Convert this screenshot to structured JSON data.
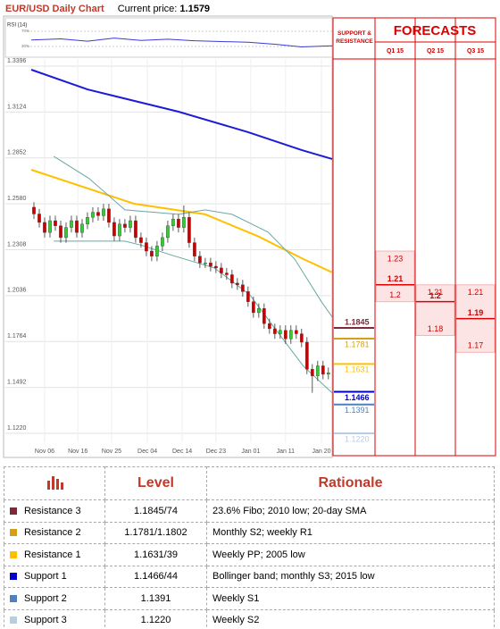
{
  "header": {
    "title": "EUR/USD Daily Chart",
    "price_label": "Current price:",
    "price": 1.1579
  },
  "chart_data": [
    {
      "type": "candlestick",
      "x": [
        0,
        1,
        2,
        3,
        4,
        5,
        6,
        7,
        8,
        9,
        10,
        11,
        12,
        13,
        14,
        15,
        16,
        17,
        18,
        19,
        20,
        21,
        22,
        23,
        24,
        25,
        26,
        27,
        28,
        29,
        30,
        31,
        32,
        33,
        34,
        35,
        36,
        37,
        38,
        39,
        40,
        41,
        42,
        43,
        44,
        45,
        46,
        47,
        48,
        49,
        50,
        51,
        52,
        53,
        54,
        55
      ],
      "open": [
        1.256,
        1.252,
        1.247,
        1.241,
        1.248,
        1.245,
        1.238,
        1.244,
        1.248,
        1.241,
        1.246,
        1.25,
        1.253,
        1.251,
        1.255,
        1.247,
        1.239,
        1.246,
        1.244,
        1.248,
        1.238,
        1.235,
        1.23,
        1.227,
        1.233,
        1.238,
        1.245,
        1.249,
        1.244,
        1.25,
        1.235,
        1.227,
        1.223,
        1.223,
        1.221,
        1.22,
        1.217,
        1.216,
        1.211,
        1.21,
        1.206,
        1.2,
        1.1935,
        1.196,
        1.187,
        1.184,
        1.181,
        1.183,
        1.178,
        1.183,
        1.181,
        1.176,
        1.16,
        1.156,
        1.162,
        1.157
      ],
      "high": [
        1.259,
        1.255,
        1.25,
        1.251,
        1.251,
        1.248,
        1.247,
        1.251,
        1.251,
        1.249,
        1.253,
        1.256,
        1.256,
        1.258,
        1.258,
        1.25,
        1.249,
        1.249,
        1.251,
        1.251,
        1.241,
        1.238,
        1.233,
        1.236,
        1.241,
        1.248,
        1.252,
        1.252,
        1.257,
        1.253,
        1.238,
        1.23,
        1.226,
        1.226,
        1.224,
        1.223,
        1.22,
        1.219,
        1.214,
        1.213,
        1.209,
        1.203,
        1.199,
        1.199,
        1.19,
        1.187,
        1.186,
        1.186,
        1.186,
        1.186,
        1.184,
        1.179,
        1.163,
        1.165,
        1.165,
        1.161
      ],
      "low": [
        1.249,
        1.244,
        1.238,
        1.238,
        1.242,
        1.235,
        1.235,
        1.241,
        1.238,
        1.238,
        1.243,
        1.247,
        1.248,
        1.248,
        1.244,
        1.236,
        1.236,
        1.241,
        1.241,
        1.235,
        1.232,
        1.227,
        1.224,
        1.224,
        1.23,
        1.235,
        1.242,
        1.241,
        1.241,
        1.232,
        1.224,
        1.22,
        1.22,
        1.218,
        1.217,
        1.214,
        1.213,
        1.208,
        1.207,
        1.203,
        1.197,
        1.1905,
        1.1905,
        1.184,
        1.181,
        1.178,
        1.178,
        1.175,
        1.175,
        1.178,
        1.173,
        1.157,
        1.146,
        1.153,
        1.154,
        1.154
      ],
      "close": [
        1.252,
        1.247,
        1.241,
        1.248,
        1.245,
        1.238,
        1.244,
        1.248,
        1.241,
        1.246,
        1.25,
        1.253,
        1.251,
        1.255,
        1.247,
        1.239,
        1.246,
        1.244,
        1.248,
        1.238,
        1.235,
        1.23,
        1.227,
        1.233,
        1.238,
        1.245,
        1.249,
        1.244,
        1.25,
        1.235,
        1.227,
        1.223,
        1.223,
        1.221,
        1.22,
        1.217,
        1.216,
        1.211,
        1.21,
        1.206,
        1.2,
        1.1935,
        1.196,
        1.187,
        1.184,
        1.181,
        1.183,
        1.178,
        1.183,
        1.181,
        1.176,
        1.16,
        1.156,
        1.162,
        1.157,
        1.1579
      ],
      "up_color": "#33cc33",
      "down_color": "#cc0000",
      "series": [
        {
          "color": "#1c1cd6",
          "x": [
            -0.5,
            10,
            27,
            40,
            50,
            55.7
          ],
          "values": [
            1.3375,
            1.3258,
            1.3126,
            1.3005,
            1.2899,
            1.2846
          ]
        },
        {
          "color": "#ffc000",
          "x": [
            -0.5,
            18.7,
            32,
            42,
            50.3,
            55.7
          ],
          "values": [
            1.2782,
            1.2581,
            1.2518,
            1.2386,
            1.2253,
            1.2174
          ]
        },
        {
          "color": "#6aa6a2",
          "x": [
            3.7,
            10.3,
            17,
            27,
            32,
            37,
            43.7,
            48.7,
            53.7,
            55.7
          ],
          "values": [
            1.2862,
            1.273,
            1.2544,
            1.2518,
            1.2544,
            1.2518,
            1.2413,
            1.2253,
            1.2,
            1.191
          ]
        },
        {
          "color": "#6aa6a2",
          "x": [
            3.7,
            10.3,
            17,
            20.3,
            25.3,
            33.7,
            40.3,
            45.3,
            50.3,
            55.7
          ],
          "values": [
            1.2359,
            1.2359,
            1.2359,
            1.2333,
            1.228,
            1.22,
            1.2042,
            1.183,
            1.1619,
            1.146
          ]
        }
      ],
      "xlim": [
        -0.5,
        55.7
      ],
      "xticks": [
        {
          "value": 2,
          "label": "Nov 06"
        },
        {
          "value": 8.2,
          "label": "Nov 16"
        },
        {
          "value": 14.5,
          "label": "Nov 25"
        },
        {
          "value": 21.2,
          "label": "Dec 04"
        },
        {
          "value": 27.7,
          "label": "Dec 14"
        },
        {
          "value": 34,
          "label": "Dec 23"
        },
        {
          "value": 40.5,
          "label": "Jan 01"
        },
        {
          "value": 47,
          "label": "Jan 11"
        },
        {
          "value": 53.7,
          "label": "Jan 20"
        }
      ],
      "ylim": [
        1.1167,
        1.3428
      ],
      "yticks": [
        1.3396,
        1.3124,
        1.2852,
        {
          "value": 1.258,
          "label": "1.2580"
        },
        1.2308,
        1.2036,
        1.1764,
        1.1492,
        {
          "value": 1.122,
          "label": "1.1220"
        }
      ],
      "grid": true,
      "levels": {
        "title": "SUPPORT & RESISTANCE",
        "values": [
          1.1845,
          1.1781,
          1.1631,
          1.1466,
          1.1391,
          1.122
        ],
        "value_labels": [
          "1.1845",
          "1.1781",
          "1.1631",
          "1.1466",
          "1.1391",
          "1.1220"
        ],
        "colors": [
          "#7b2c3a",
          "#d4a017",
          "#ffc000",
          "#0000cc",
          "#4f81bd",
          "#b8cce4"
        ]
      },
      "forecast": {
        "title": "FORECASTS",
        "columns": [
          "Q1 15",
          "Q2 15",
          "Q3 15"
        ],
        "high": [
          1.23,
          1.21,
          1.21
        ],
        "mid": [
          1.21,
          1.2,
          1.19
        ],
        "low": [
          1.2,
          1.18,
          1.17
        ]
      }
    },
    {
      "type": "line",
      "title": "RSI (14)",
      "color": "#3b3bd6",
      "x": [
        -0.5,
        5,
        10,
        15,
        20,
        25,
        30,
        35,
        40,
        45,
        50,
        55.7
      ],
      "values": [
        47,
        50,
        44,
        52,
        46,
        49,
        45,
        43,
        41,
        36,
        29,
        32
      ],
      "xlim": [
        -0.5,
        55.7
      ],
      "ylim": [
        2,
        105
      ],
      "yticks": [
        {
          "value": 70,
          "label": "70%"
        },
        {
          "value": 30,
          "label": "30%"
        }
      ]
    }
  ],
  "table": {
    "header": [
      "Level",
      "Rationale"
    ],
    "rows": [
      {
        "color": "#7b2c3a",
        "name": "Resistance 3",
        "level": "1.1845/74",
        "rationale": "23.6% Fibo; 2010 low; 20-day SMA"
      },
      {
        "color": "#d4a017",
        "name": "Resistance 2",
        "level": "1.1781/1.1802",
        "rationale": "Monthly S2; weekly R1"
      },
      {
        "color": "#ffc000",
        "name": "Resistance 1",
        "level": "1.1631/39",
        "rationale": "Weekly PP; 2005 low"
      },
      {
        "color": "#0000cc",
        "name": "Support 1",
        "level": "1.1466/44",
        "rationale": "Bollinger band; monthly S3; 2015 low"
      },
      {
        "color": "#4f81bd",
        "name": "Support 2",
        "level": "1.1391",
        "rationale": "Weekly S1"
      },
      {
        "color": "#b8cce4",
        "name": "Support 3",
        "level": "1.1220",
        "rationale": "Weekly S2"
      }
    ]
  }
}
